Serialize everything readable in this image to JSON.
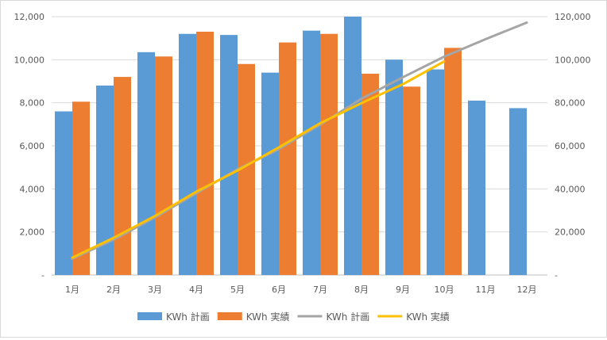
{
  "chart_data": {
    "type": "bar",
    "title": "",
    "categories": [
      "1月",
      "2月",
      "3月",
      "4月",
      "5月",
      "6月",
      "7月",
      "8月",
      "9月",
      "10月",
      "11月",
      "12月"
    ],
    "series": [
      {
        "name": "KWh 計画",
        "type": "bar",
        "axis": "left",
        "color": "#5b9bd5",
        "values": [
          7600,
          8800,
          10350,
          11200,
          11150,
          9400,
          11350,
          12000,
          10000,
          9550,
          8100,
          7750
        ]
      },
      {
        "name": "KWh 実績",
        "type": "bar",
        "axis": "left",
        "color": "#ed7d31",
        "values": [
          8050,
          9200,
          10150,
          11300,
          9800,
          10800,
          11200,
          9350,
          8750,
          10550,
          null,
          null
        ]
      },
      {
        "name": "KWh 計画",
        "type": "line",
        "axis": "right",
        "color": "#a5a5a5",
        "values": [
          7600,
          16400,
          26750,
          37950,
          49100,
          58500,
          69850,
          81850,
          91850,
          101400,
          109500,
          117250
        ]
      },
      {
        "name": "KWh 実績",
        "type": "line",
        "axis": "right",
        "color": "#ffc000",
        "values": [
          8050,
          17250,
          27400,
          38700,
          48500,
          59300,
          70500,
          79850,
          88600,
          99150,
          null,
          null
        ]
      }
    ],
    "y_left": {
      "min": 0,
      "max": 12000,
      "ticks": [
        "-",
        "2,000",
        "4,000",
        "6,000",
        "8,000",
        "10,000",
        "12,000"
      ]
    },
    "y_right": {
      "min": 0,
      "max": 120000,
      "ticks": [
        "-",
        "20,000",
        "40,000",
        "60,000",
        "80,000",
        "100,000",
        "120,000"
      ]
    },
    "grid": true,
    "legend": "bottom"
  }
}
